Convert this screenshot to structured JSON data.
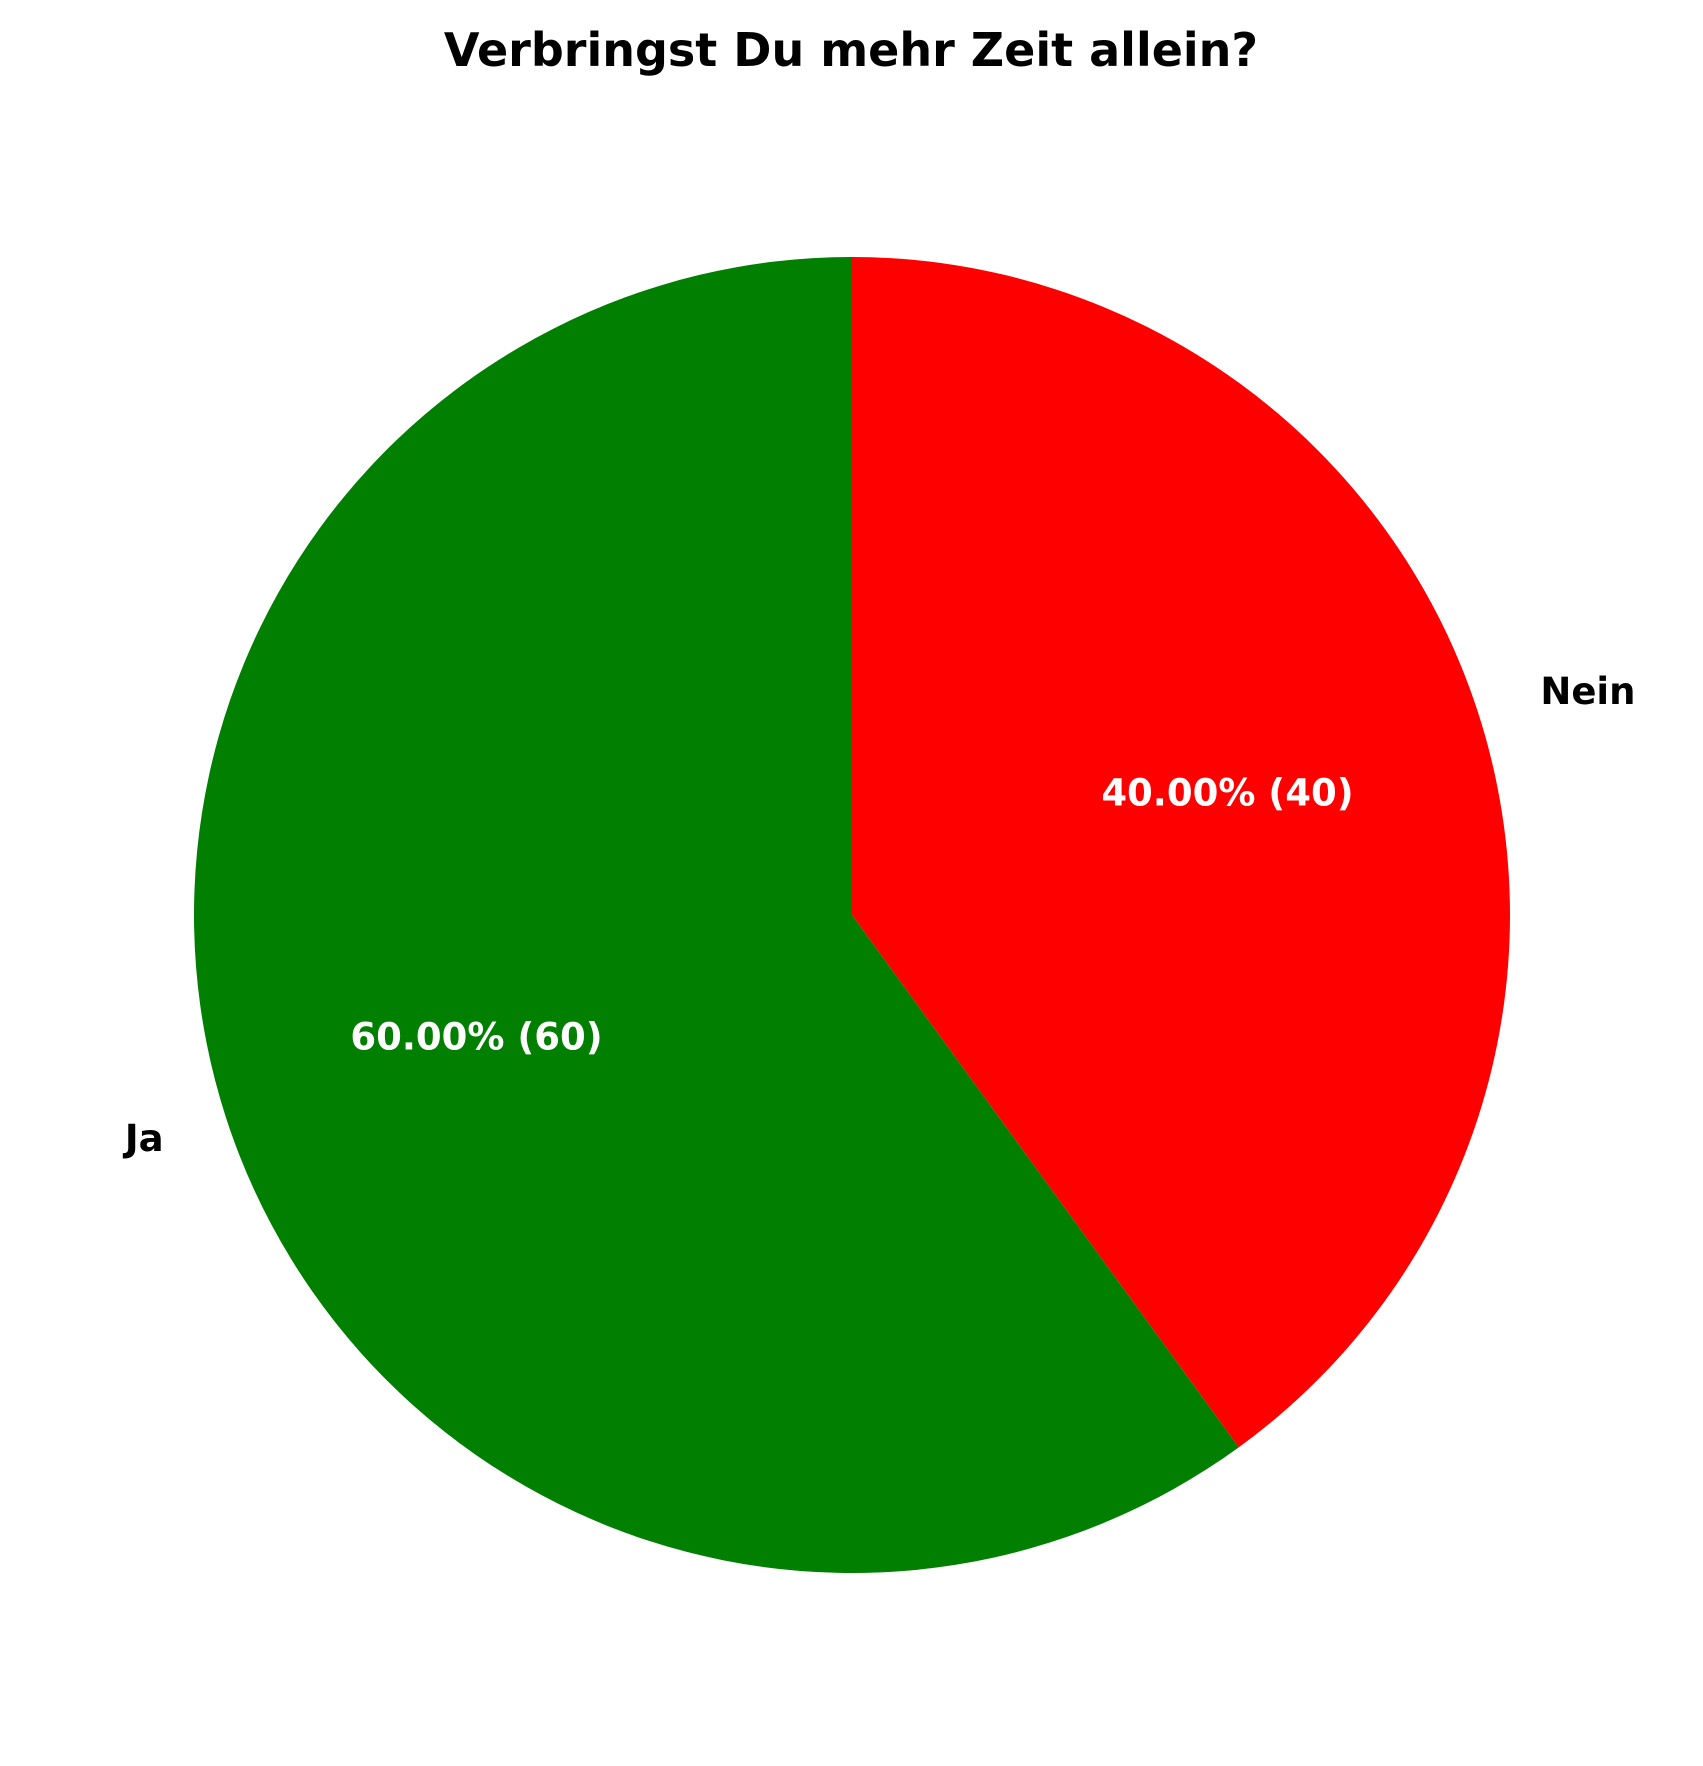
{
  "chart_data": {
    "type": "pie",
    "title": "Verbringst Du mehr Zeit allein?",
    "start_angle_deg": 90,
    "direction": "clockwise",
    "slices": [
      {
        "label": "Nein",
        "value": 40,
        "percent_label": "40.00% (40)",
        "color": "#ff0000"
      },
      {
        "label": "Ja",
        "value": 60,
        "percent_label": "60.00% (60)",
        "color": "#007f00"
      }
    ]
  }
}
